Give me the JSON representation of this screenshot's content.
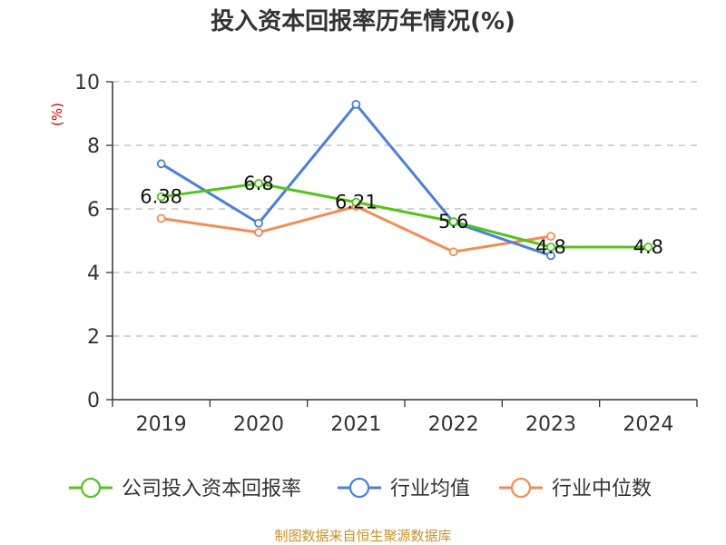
{
  "chart_data": {
    "type": "line",
    "title": "投入资本回报率历年情况(%)",
    "ylabel": "(%)",
    "xlabel": "",
    "categories": [
      "2019",
      "2020",
      "2021",
      "2022",
      "2023",
      "2024"
    ],
    "ylim": [
      0,
      10
    ],
    "yticks": [
      0,
      2,
      4,
      6,
      8,
      10
    ],
    "grid": true,
    "legend_position": "bottom",
    "series": [
      {
        "name": "公司投入资本回报率",
        "color": "#52c41a",
        "values": [
          6.38,
          6.8,
          6.21,
          5.6,
          4.8,
          4.8
        ],
        "labels": [
          "6.38",
          "6.8",
          "6.21",
          "5.6",
          "4.8",
          "4.8"
        ]
      },
      {
        "name": "行业均值",
        "color": "#4a7fdc",
        "values": [
          7.42,
          5.55,
          9.29,
          5.58,
          4.53,
          null
        ]
      },
      {
        "name": "行业中位数",
        "color": "#f48b55",
        "values": [
          5.7,
          5.26,
          6.08,
          4.65,
          5.14,
          null
        ]
      }
    ]
  },
  "source": "制图数据来自恒生聚源数据库"
}
